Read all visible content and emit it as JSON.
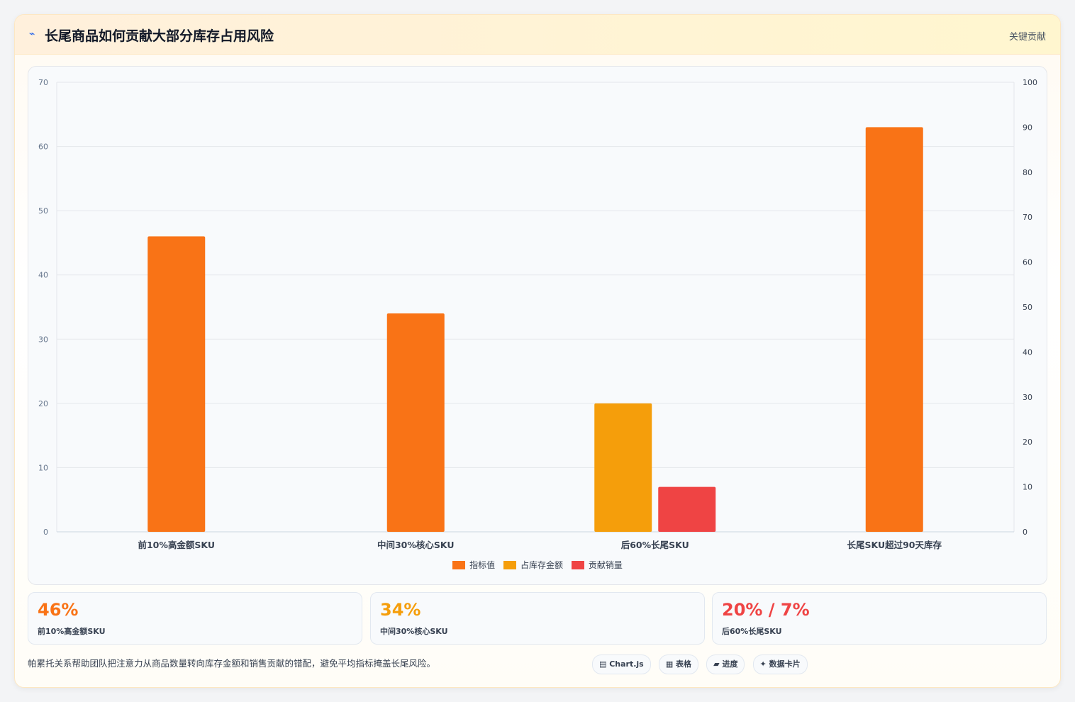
{
  "header": {
    "icon": "chart-icon",
    "title": "长尾商品如何贡献大部分库存占用风险",
    "badge": "关键贡献"
  },
  "colors": {
    "orange": "#f97316",
    "amber": "#f59e0b",
    "red": "#ef4444"
  },
  "chart_data": {
    "type": "bar",
    "categories": [
      "前10%高金额SKU",
      "中间30%核心SKU",
      "后60%长尾SKU",
      "长尾SKU超过90天库存"
    ],
    "series": [
      {
        "name": "指标值",
        "color": "#f97316",
        "values": [
          46,
          34,
          null,
          63
        ]
      },
      {
        "name": "占库存金额",
        "color": "#f59e0b",
        "values": [
          null,
          null,
          20,
          null
        ]
      },
      {
        "name": "贡献销量",
        "color": "#ef4444",
        "values": [
          null,
          null,
          7,
          null
        ]
      }
    ],
    "ylim_left": [
      0,
      70
    ],
    "yticks_left": [
      0,
      10,
      20,
      30,
      40,
      50,
      60,
      70
    ],
    "ylim_right": [
      0,
      100
    ],
    "yticks_right": [
      0,
      10,
      20,
      30,
      40,
      50,
      60,
      70,
      80,
      90,
      100
    ],
    "grid": true,
    "legend_position": "bottom"
  },
  "stats": [
    {
      "value": "46%",
      "label": "前10%高金额SKU",
      "color": "#f97316"
    },
    {
      "value": "34%",
      "label": "中间30%核心SKU",
      "color": "#f59e0b"
    },
    {
      "value": "20% / 7%",
      "label": "后60%长尾SKU",
      "color": "#ef4444"
    }
  ],
  "note": "帕累托关系帮助团队把注意力从商品数量转向库存金额和销售贡献的错配，避免平均指标掩盖长尾风险。",
  "chips": [
    "▤ Chart.js",
    "▦ 表格",
    "▰ 进度",
    "✦ 数据卡片"
  ]
}
